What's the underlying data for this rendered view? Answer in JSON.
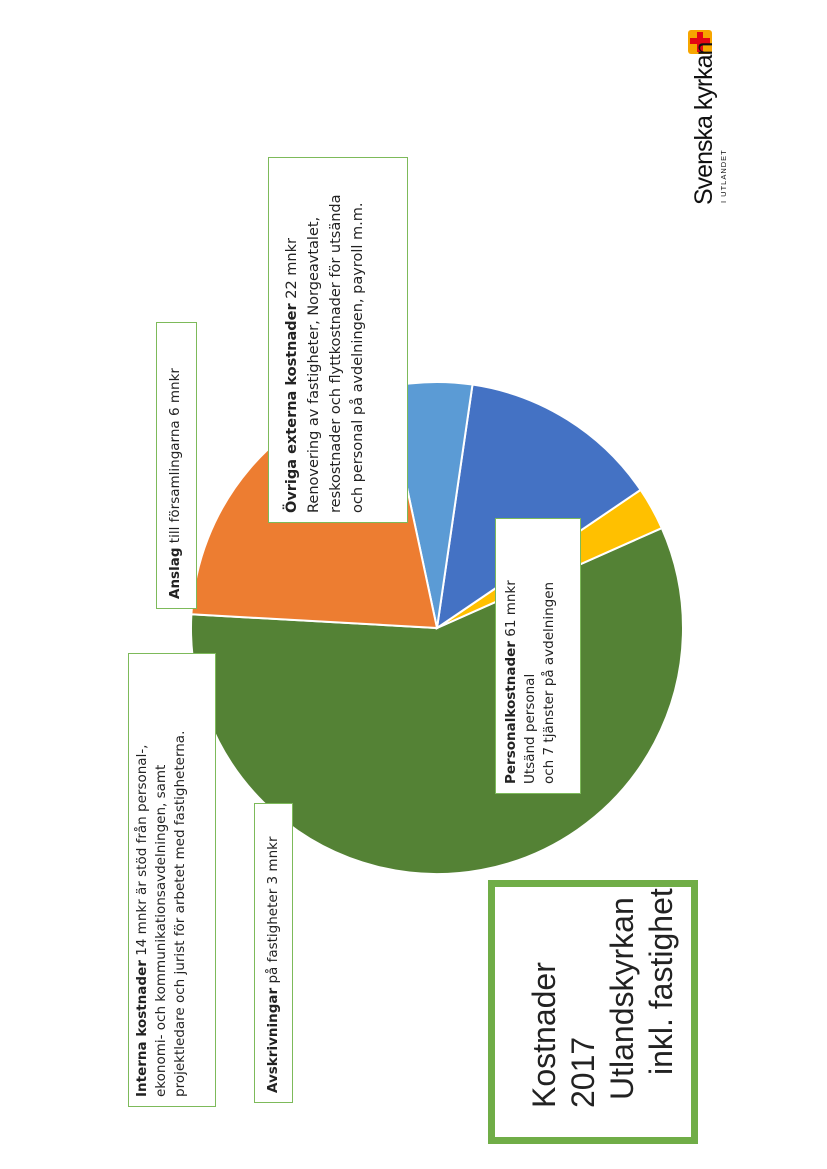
{
  "chart_data": {
    "type": "pie",
    "title": "Kostnader 2017 Utlandskyrkan inkl. fastighet",
    "unit": "mnkr",
    "slices": [
      {
        "name": "Personalkostnader",
        "value": 61,
        "color": "#548235"
      },
      {
        "name": "Avskrivningar",
        "value": 3,
        "color": "#ffc000"
      },
      {
        "name": "Interna kostnader",
        "value": 14,
        "color": "#4472c4"
      },
      {
        "name": "Anslag",
        "value": 6,
        "color": "#5b9bd5"
      },
      {
        "name": "Övriga externa kostnader",
        "value": 22,
        "color": "#ed7d31"
      }
    ]
  },
  "labels": {
    "interna": {
      "bold": "Interna kostnader",
      "rest": " 14 mnkr är stöd från personal-,",
      "line2": "ekonomi- och kommunikationsavdelningen, samt",
      "line3": "projektledare och jurist för arbetet med fastigheterna."
    },
    "avskr": {
      "bold": "Avskrivningar",
      "rest": " på fastigheter 3 mnkr"
    },
    "anslag": {
      "bold": "Anslag",
      "rest": " till församlingarna 6 mnkr"
    },
    "ovriga": {
      "bold": "Övriga externa kostnader",
      "rest": " 22 mnkr",
      "line2": "Renovering av fastigheter, Norgeavtalet,",
      "line3": "reskostnader och flyttkostnader för utsända",
      "line4": "och personal på avdelningen, payroll m.m."
    },
    "personal": {
      "bold": "Personalkostnader",
      "rest": " 61 mnkr",
      "line2": "Utsänd personal",
      "line3": "och 7 tjänster på avdelningen"
    }
  },
  "title_lines": [
    "Kostnader 2017",
    "Utlandskyrkan",
    "inkl. fastighet"
  ],
  "logo": {
    "name": "Svenska kyrkan",
    "sub": "I UTLANDET",
    "cross_color": "#e30613",
    "cross_bg": "#f7a600"
  }
}
